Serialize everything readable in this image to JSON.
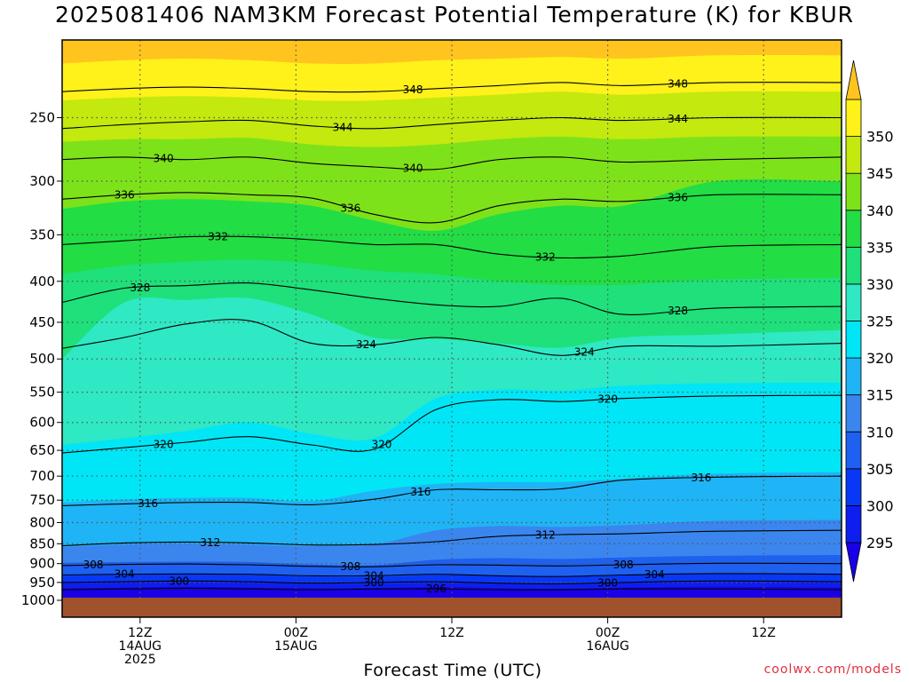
{
  "chart_data": {
    "type": "heatmap",
    "title": "2025081406 NAM3KM Forecast Potential Temperature (K) for KBUR",
    "xlabel": "Forecast Time (UTC)",
    "ylabel": "",
    "y_scale": "log-pressure",
    "y_range_hpa": [
      1000,
      200
    ],
    "y_ticks_hpa": [
      250,
      300,
      350,
      400,
      450,
      500,
      550,
      600,
      650,
      700,
      750,
      800,
      850,
      900,
      950,
      1000
    ],
    "x_range_hours": [
      -5,
      45
    ],
    "x_ticks": [
      {
        "hour": 0,
        "lines": [
          "12Z",
          "14AUG",
          "2025"
        ]
      },
      {
        "hour": 10,
        "lines": [
          "00Z",
          "15AUG"
        ]
      },
      {
        "hour": 20,
        "lines": [
          "12Z"
        ]
      },
      {
        "hour": 30,
        "lines": [
          "00Z",
          "16AUG"
        ]
      },
      {
        "hour": 40,
        "lines": [
          "12Z"
        ]
      }
    ],
    "grid": "dotted",
    "colorbar": {
      "placement": "right",
      "levels": [
        295,
        300,
        305,
        310,
        315,
        320,
        325,
        330,
        335,
        340,
        345,
        350
      ],
      "colors": [
        "#1a00e6",
        "#0e1eef",
        "#0838f6",
        "#1e60f0",
        "#3a86ee",
        "#1fb4f5",
        "#00e6f6",
        "#2fe8c4",
        "#1fe07a",
        "#22dd44",
        "#7ee21a",
        "#c3e90e",
        "#fff11a",
        "#ffc41e"
      ],
      "extend": "both"
    },
    "contour_interval_k": 4,
    "contour_levels": [
      {
        "value": 296,
        "hpa": [
          970,
          968,
          966,
          968,
          970,
          968,
          968,
          970,
          970,
          968,
          968,
          970
        ]
      },
      {
        "value": 300,
        "hpa": [
          950,
          948,
          946,
          948,
          952,
          950,
          948,
          952,
          954,
          950,
          946,
          948
        ]
      },
      {
        "value": 304,
        "hpa": [
          930,
          928,
          927,
          928,
          932,
          932,
          928,
          932,
          934,
          930,
          926,
          928
        ]
      },
      {
        "value": 308,
        "hpa": [
          905,
          902,
          901,
          903,
          907,
          908,
          903,
          904,
          906,
          903,
          899,
          900
        ]
      },
      {
        "value": 312,
        "hpa": [
          855,
          848,
          846,
          848,
          853,
          852,
          845,
          832,
          828,
          826,
          820,
          818
        ]
      },
      {
        "value": 316,
        "hpa": [
          762,
          758,
          755,
          755,
          760,
          748,
          728,
          728,
          726,
          708,
          702,
          700
        ]
      },
      {
        "value": 320,
        "hpa": [
          655,
          645,
          635,
          625,
          640,
          648,
          578,
          562,
          565,
          560,
          556,
          555
        ]
      },
      {
        "value": 324,
        "hpa": [
          485,
          470,
          452,
          448,
          478,
          480,
          470,
          480,
          495,
          482,
          482,
          478
        ]
      },
      {
        "value": 328,
        "hpa": [
          425,
          408,
          405,
          402,
          410,
          420,
          428,
          430,
          420,
          440,
          432,
          430
        ]
      },
      {
        "value": 332,
        "hpa": [
          360,
          356,
          352,
          352,
          355,
          360,
          360,
          370,
          374,
          372,
          362,
          360
        ]
      },
      {
        "value": 336,
        "hpa": [
          316,
          312,
          310,
          312,
          315,
          330,
          338,
          322,
          316,
          318,
          312,
          312
        ]
      },
      {
        "value": 340,
        "hpa": [
          282,
          280,
          282,
          280,
          285,
          288,
          290,
          282,
          280,
          284,
          282,
          280
        ]
      },
      {
        "value": 344,
        "hpa": [
          258,
          255,
          253,
          252,
          256,
          258,
          255,
          252,
          250,
          252,
          250,
          250
        ]
      },
      {
        "value": 348,
        "hpa": [
          232,
          230,
          229,
          230,
          232,
          232,
          230,
          228,
          226,
          228,
          226,
          226
        ]
      }
    ],
    "contour_x_hours": [
      -5,
      -1,
      3,
      7,
      11,
      15,
      19,
      23,
      27,
      31,
      37,
      45
    ],
    "contour_labels": [
      {
        "value": 348,
        "hour": 17.5
      },
      {
        "value": 348,
        "hour": 34.5
      },
      {
        "value": 344,
        "hour": 13
      },
      {
        "value": 344,
        "hour": 34.5
      },
      {
        "value": 340,
        "hour": 1.5
      },
      {
        "value": 340,
        "hour": 17.5
      },
      {
        "value": 336,
        "hour": -1
      },
      {
        "value": 336,
        "hour": 13.5
      },
      {
        "value": 336,
        "hour": 34.5
      },
      {
        "value": 332,
        "hour": 5
      },
      {
        "value": 332,
        "hour": 26
      },
      {
        "value": 328,
        "hour": 0
      },
      {
        "value": 328,
        "hour": 34.5
      },
      {
        "value": 324,
        "hour": 14.5
      },
      {
        "value": 324,
        "hour": 28.5
      },
      {
        "value": 320,
        "hour": 1.5
      },
      {
        "value": 320,
        "hour": 15.5
      },
      {
        "value": 320,
        "hour": 30
      },
      {
        "value": 316,
        "hour": 0.5
      },
      {
        "value": 316,
        "hour": 18
      },
      {
        "value": 316,
        "hour": 36
      },
      {
        "value": 312,
        "hour": 4.5
      },
      {
        "value": 312,
        "hour": 26
      },
      {
        "value": 308,
        "hour": -3
      },
      {
        "value": 308,
        "hour": 13.5
      },
      {
        "value": 308,
        "hour": 31
      },
      {
        "value": 304,
        "hour": -1
      },
      {
        "value": 304,
        "hour": 15
      },
      {
        "value": 304,
        "hour": 33
      },
      {
        "value": 300,
        "hour": 2.5
      },
      {
        "value": 300,
        "hour": 15
      },
      {
        "value": 300,
        "hour": 30
      },
      {
        "value": 296,
        "hour": 19
      }
    ],
    "fill_bands": [
      {
        "color": "#ffc41e",
        "hpa": [
          200,
          200,
          200,
          200,
          200,
          200,
          200,
          200,
          200,
          200,
          200,
          200
        ]
      },
      {
        "color": "#fff11a",
        "hpa": [
          214,
          212,
          211,
          212,
          214,
          214,
          212,
          211,
          210,
          211,
          209,
          209
        ]
      },
      {
        "color": "#c3e90e",
        "hpa": [
          238,
          236,
          235,
          236,
          238,
          238,
          236,
          234,
          232,
          234,
          232,
          232
        ]
      },
      {
        "color": "#7ee21a",
        "hpa": [
          268,
          266,
          266,
          265,
          270,
          272,
          270,
          266,
          264,
          266,
          264,
          264
        ]
      },
      {
        "color": "#22dd44",
        "hpa": [
          325,
          318,
          316,
          318,
          322,
          336,
          346,
          330,
          322,
          322,
          300,
          300
        ]
      },
      {
        "color": "#1fe07a",
        "hpa": [
          392,
          382,
          378,
          376,
          380,
          388,
          392,
          400,
          404,
          404,
          398,
          396
        ]
      },
      {
        "color": "#2fe8c4",
        "hpa": [
          500,
          425,
          422,
          420,
          440,
          470,
          472,
          478,
          484,
          470,
          466,
          460
        ]
      },
      {
        "color": "#00e6f6",
        "hpa": [
          640,
          628,
          615,
          600,
          620,
          628,
          560,
          546,
          548,
          540,
          536,
          535
        ]
      },
      {
        "color": "#1fb4f5",
        "hpa": [
          755,
          748,
          745,
          745,
          752,
          730,
          716,
          712,
          712,
          705,
          695,
          692
        ]
      },
      {
        "color": "#3a86ee",
        "hpa": [
          858,
          852,
          850,
          852,
          856,
          852,
          818,
          808,
          810,
          806,
          796,
          794
        ]
      },
      {
        "color": "#1e60f0",
        "hpa": [
          898,
          896,
          895,
          896,
          902,
          904,
          890,
          886,
          888,
          884,
          880,
          878
        ]
      },
      {
        "color": "#0838f6",
        "hpa": [
          932,
          930,
          928,
          930,
          934,
          935,
          930,
          932,
          934,
          930,
          926,
          926
        ]
      },
      {
        "color": "#0e1eef",
        "hpa": [
          952,
          950,
          948,
          950,
          954,
          954,
          950,
          954,
          956,
          952,
          948,
          950
        ]
      },
      {
        "color": "#1a00e6",
        "hpa": [
          966,
          964,
          962,
          964,
          966,
          966,
          962,
          966,
          968,
          964,
          962,
          964
        ]
      }
    ]
  },
  "watermark": "coolwx.com/models"
}
